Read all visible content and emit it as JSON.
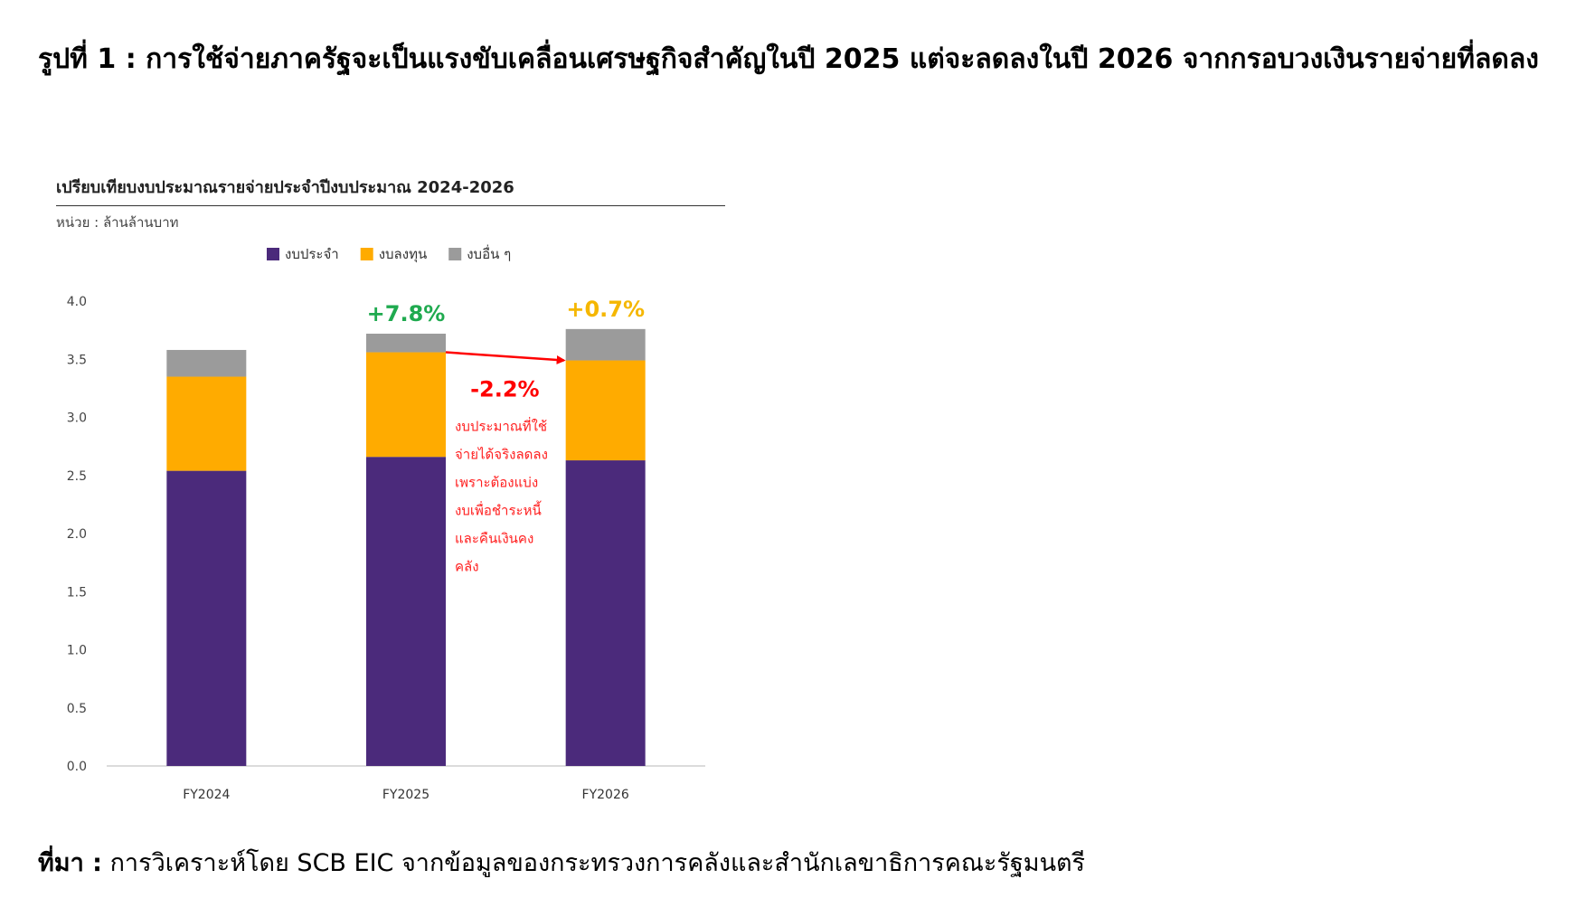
{
  "page": {
    "heading": "รูปที่ 1 : การใช้จ่ายภาครัฐจะเป็นแรงขับเคลื่อนเศรษฐกิจสำคัญในปี 2025 แต่จะลดลงในปี 2026 จากกรอบวงเงินรายจ่ายที่ลดลง",
    "source_label": "ที่มา :",
    "source_text": "การวิเคราะห์โดย SCB EIC จากข้อมูลของกระทรวงการคลังและสำนักเลขาธิการคณะรัฐมนตรี"
  },
  "chart_data": {
    "type": "bar",
    "stacked": true,
    "title": "เปรียบเทียบงบประมาณรายจ่ายประจำปีงบประมาณ 2024-2026",
    "unit": "หน่วย : ล้านล้านบาท",
    "categories": [
      "FY2024",
      "FY2025",
      "FY2026"
    ],
    "series": [
      {
        "name": "งบประจำ",
        "color": "#4b2a7b",
        "values": [
          2.54,
          2.66,
          2.63
        ]
      },
      {
        "name": "งบลงทุน",
        "color": "#ffab00",
        "values": [
          0.81,
          0.9,
          0.86
        ]
      },
      {
        "name": "งบอื่น ๆ",
        "color": "#9b9b9b",
        "values": [
          0.23,
          0.16,
          0.27
        ]
      }
    ],
    "ylim": [
      0,
      4.0
    ],
    "yticks": [
      "0.0",
      "0.5",
      "1.0",
      "1.5",
      "2.0",
      "2.5",
      "3.0",
      "3.5",
      "4.0"
    ],
    "legend_position": "top",
    "grid": false,
    "annotations": {
      "growth_labels": [
        {
          "category": "FY2025",
          "text": "+7.8%",
          "color": "#1faa4f"
        },
        {
          "category": "FY2026",
          "text": "+0.7%",
          "color": "#f5b700"
        }
      ],
      "arrow": {
        "from": {
          "category": "FY2025",
          "value": 3.56
        },
        "to": {
          "category": "FY2026",
          "value": 3.49
        },
        "color": "#ff0000"
      },
      "change_label": {
        "text": "-2.2%",
        "color": "#ff0000"
      },
      "note_lines": [
        "งบประมาณที่ใช้",
        "จ่ายได้จริงลดลง",
        "เพราะต้องแบ่ง",
        "งบเพื่อชำระหนี้",
        "และคืนเงินคง",
        "คลัง"
      ]
    }
  }
}
